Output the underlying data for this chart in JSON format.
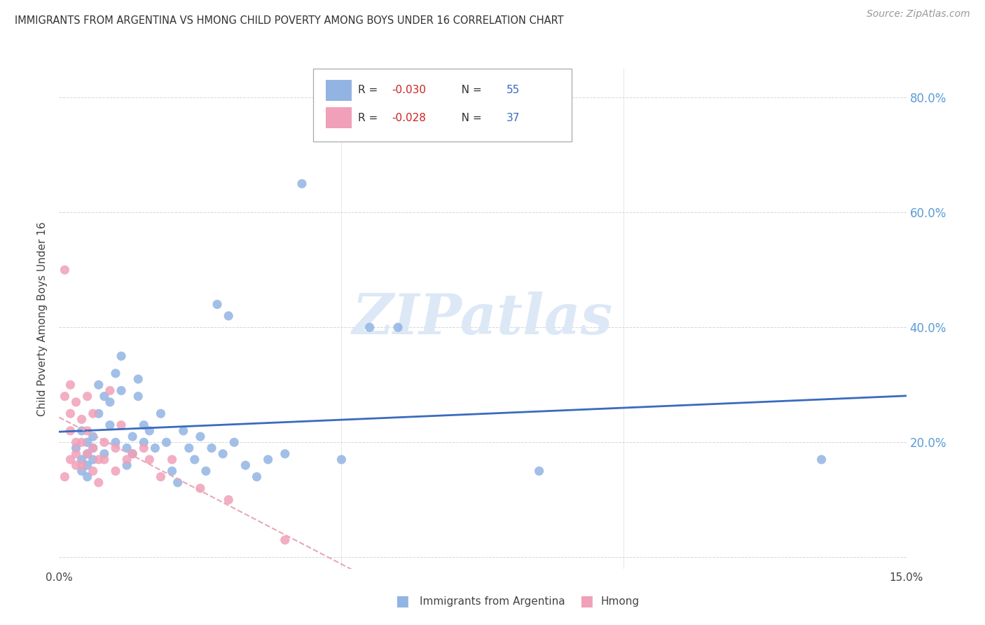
{
  "title": "IMMIGRANTS FROM ARGENTINA VS HMONG CHILD POVERTY AMONG BOYS UNDER 16 CORRELATION CHART",
  "source": "Source: ZipAtlas.com",
  "ylabel": "Child Poverty Among Boys Under 16",
  "xlim": [
    0.0,
    0.15
  ],
  "ylim": [
    -0.02,
    0.85
  ],
  "yticks": [
    0.0,
    0.2,
    0.4,
    0.6,
    0.8
  ],
  "argentina_color": "#92b4e3",
  "hmong_color": "#f0a0b8",
  "trendline_argentina_color": "#3a6bbf",
  "trendline_hmong_color": "#e8a8b8",
  "watermark": "ZIPatlas",
  "argentina_x": [
    0.003,
    0.004,
    0.004,
    0.004,
    0.005,
    0.005,
    0.005,
    0.005,
    0.006,
    0.006,
    0.006,
    0.007,
    0.007,
    0.008,
    0.008,
    0.009,
    0.009,
    0.01,
    0.01,
    0.011,
    0.011,
    0.012,
    0.012,
    0.013,
    0.013,
    0.014,
    0.014,
    0.015,
    0.015,
    0.016,
    0.017,
    0.018,
    0.019,
    0.02,
    0.021,
    0.022,
    0.023,
    0.024,
    0.025,
    0.026,
    0.027,
    0.028,
    0.029,
    0.03,
    0.031,
    0.033,
    0.035,
    0.037,
    0.04,
    0.043,
    0.05,
    0.055,
    0.06,
    0.085,
    0.135
  ],
  "argentina_y": [
    0.19,
    0.17,
    0.15,
    0.22,
    0.18,
    0.2,
    0.16,
    0.14,
    0.19,
    0.17,
    0.21,
    0.25,
    0.3,
    0.18,
    0.28,
    0.23,
    0.27,
    0.2,
    0.32,
    0.29,
    0.35,
    0.19,
    0.16,
    0.21,
    0.18,
    0.31,
    0.28,
    0.2,
    0.23,
    0.22,
    0.19,
    0.25,
    0.2,
    0.15,
    0.13,
    0.22,
    0.19,
    0.17,
    0.21,
    0.15,
    0.19,
    0.44,
    0.18,
    0.42,
    0.2,
    0.16,
    0.14,
    0.17,
    0.18,
    0.65,
    0.17,
    0.4,
    0.4,
    0.15,
    0.17
  ],
  "hmong_x": [
    0.001,
    0.001,
    0.001,
    0.002,
    0.002,
    0.002,
    0.002,
    0.003,
    0.003,
    0.003,
    0.003,
    0.004,
    0.004,
    0.004,
    0.005,
    0.005,
    0.005,
    0.006,
    0.006,
    0.006,
    0.007,
    0.007,
    0.008,
    0.008,
    0.009,
    0.01,
    0.01,
    0.011,
    0.012,
    0.013,
    0.015,
    0.016,
    0.018,
    0.02,
    0.025,
    0.03,
    0.04
  ],
  "hmong_y": [
    0.5,
    0.28,
    0.14,
    0.3,
    0.25,
    0.22,
    0.17,
    0.2,
    0.18,
    0.16,
    0.27,
    0.24,
    0.2,
    0.16,
    0.28,
    0.22,
    0.18,
    0.19,
    0.25,
    0.15,
    0.17,
    0.13,
    0.2,
    0.17,
    0.29,
    0.19,
    0.15,
    0.23,
    0.17,
    0.18,
    0.19,
    0.17,
    0.14,
    0.17,
    0.12,
    0.1,
    0.03
  ],
  "background_color": "#ffffff",
  "grid_color": "#cccccc",
  "title_color": "#333333",
  "right_axis_color": "#5b9bd5",
  "legend_R1": "-0.030",
  "legend_N1": "55",
  "legend_R2": "-0.028",
  "legend_N2": "37"
}
